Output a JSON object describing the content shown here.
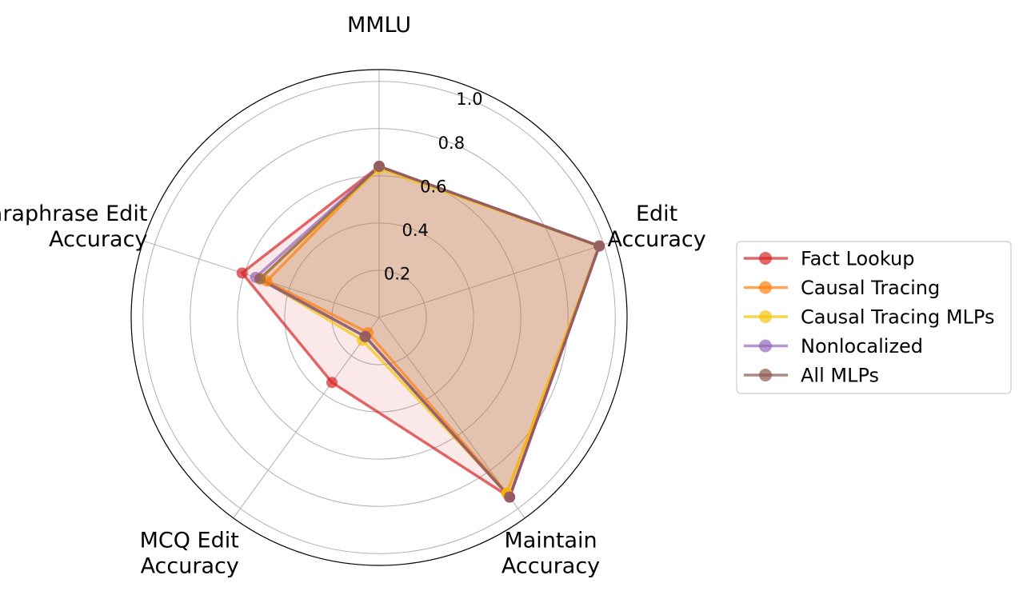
{
  "chart_data": {
    "type": "radar",
    "axes": [
      {
        "lines": [
          "MMLU"
        ]
      },
      {
        "lines": [
          "Edit",
          "Accuracy"
        ]
      },
      {
        "lines": [
          "Maintain",
          "Accuracy"
        ]
      },
      {
        "lines": [
          "MCQ Edit",
          "Accuracy"
        ]
      },
      {
        "lines": [
          "Paraphrase Edit",
          "Accuracy"
        ]
      }
    ],
    "rticks": [
      "0.2",
      "0.4",
      "0.6",
      "0.8",
      "1.0"
    ],
    "rtick_values": [
      0.2,
      0.4,
      0.6,
      0.8,
      1.0
    ],
    "rlim": [
      0,
      1.05
    ],
    "grid": true,
    "legend_position": "right",
    "series": [
      {
        "name": "Fact Lookup",
        "color": "#d62728",
        "values": [
          0.64,
          0.98,
          0.94,
          0.34,
          0.61
        ]
      },
      {
        "name": "Causal Tracing",
        "color": "#ff7f0e",
        "values": [
          0.64,
          0.98,
          0.92,
          0.08,
          0.5
        ]
      },
      {
        "name": "Causal Tracing MLPs",
        "color": "#f2c40c",
        "values": [
          0.63,
          0.98,
          0.92,
          0.12,
          0.53
        ]
      },
      {
        "name": "Nonlocalized",
        "color": "#9467bd",
        "values": [
          0.64,
          0.98,
          0.94,
          0.1,
          0.55
        ]
      },
      {
        "name": "All MLPs",
        "color": "#8c564b",
        "values": [
          0.64,
          0.98,
          0.94,
          0.1,
          0.53
        ]
      }
    ]
  }
}
